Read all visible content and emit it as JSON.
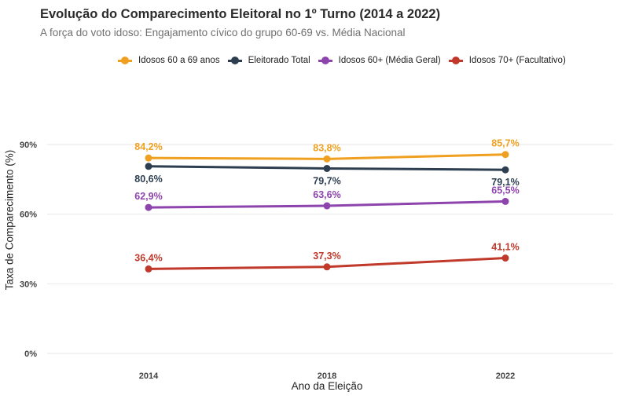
{
  "chart_data": {
    "type": "line",
    "title": "Evolução do Comparecimento Eleitoral no 1º Turno (2014 a 2022)",
    "subtitle": "A força do voto idoso: Engajamento cívico do grupo 60-69 vs. Média Nacional",
    "xlabel": "Ano da Eleição",
    "ylabel": "Taxa de Comparecimento (%)",
    "x": [
      "2014",
      "2018",
      "2022"
    ],
    "ylim": [
      0,
      100
    ],
    "yticks": [
      0,
      30,
      60,
      90
    ],
    "ytick_labels": [
      "0%",
      "30%",
      "60%",
      "90%"
    ],
    "grid": true,
    "legend_position": "top",
    "series": [
      {
        "name": "Idosos 60 a 69 anos",
        "color": "#F0A020",
        "values": [
          84.2,
          83.8,
          85.7
        ],
        "labels": [
          "84,2%",
          "83,8%",
          "85,7%"
        ],
        "label_pos": "above"
      },
      {
        "name": "Eleitorado Total",
        "color": "#2C3E50",
        "values": [
          80.6,
          79.7,
          79.1
        ],
        "labels": [
          "80,6%",
          "79,7%",
          "79,1%"
        ],
        "label_pos": "below"
      },
      {
        "name": "Idosos 60+ (Média Geral)",
        "color": "#8E44AD",
        "values": [
          62.9,
          63.6,
          65.5
        ],
        "labels": [
          "62,9%",
          "63,6%",
          "65,5%"
        ],
        "label_pos": "above"
      },
      {
        "name": "Idosos 70+ (Facultativo)",
        "color": "#C0392B",
        "values": [
          36.4,
          37.3,
          41.1
        ],
        "labels": [
          "36,4%",
          "37,3%",
          "41,1%"
        ],
        "label_pos": "above"
      }
    ]
  }
}
